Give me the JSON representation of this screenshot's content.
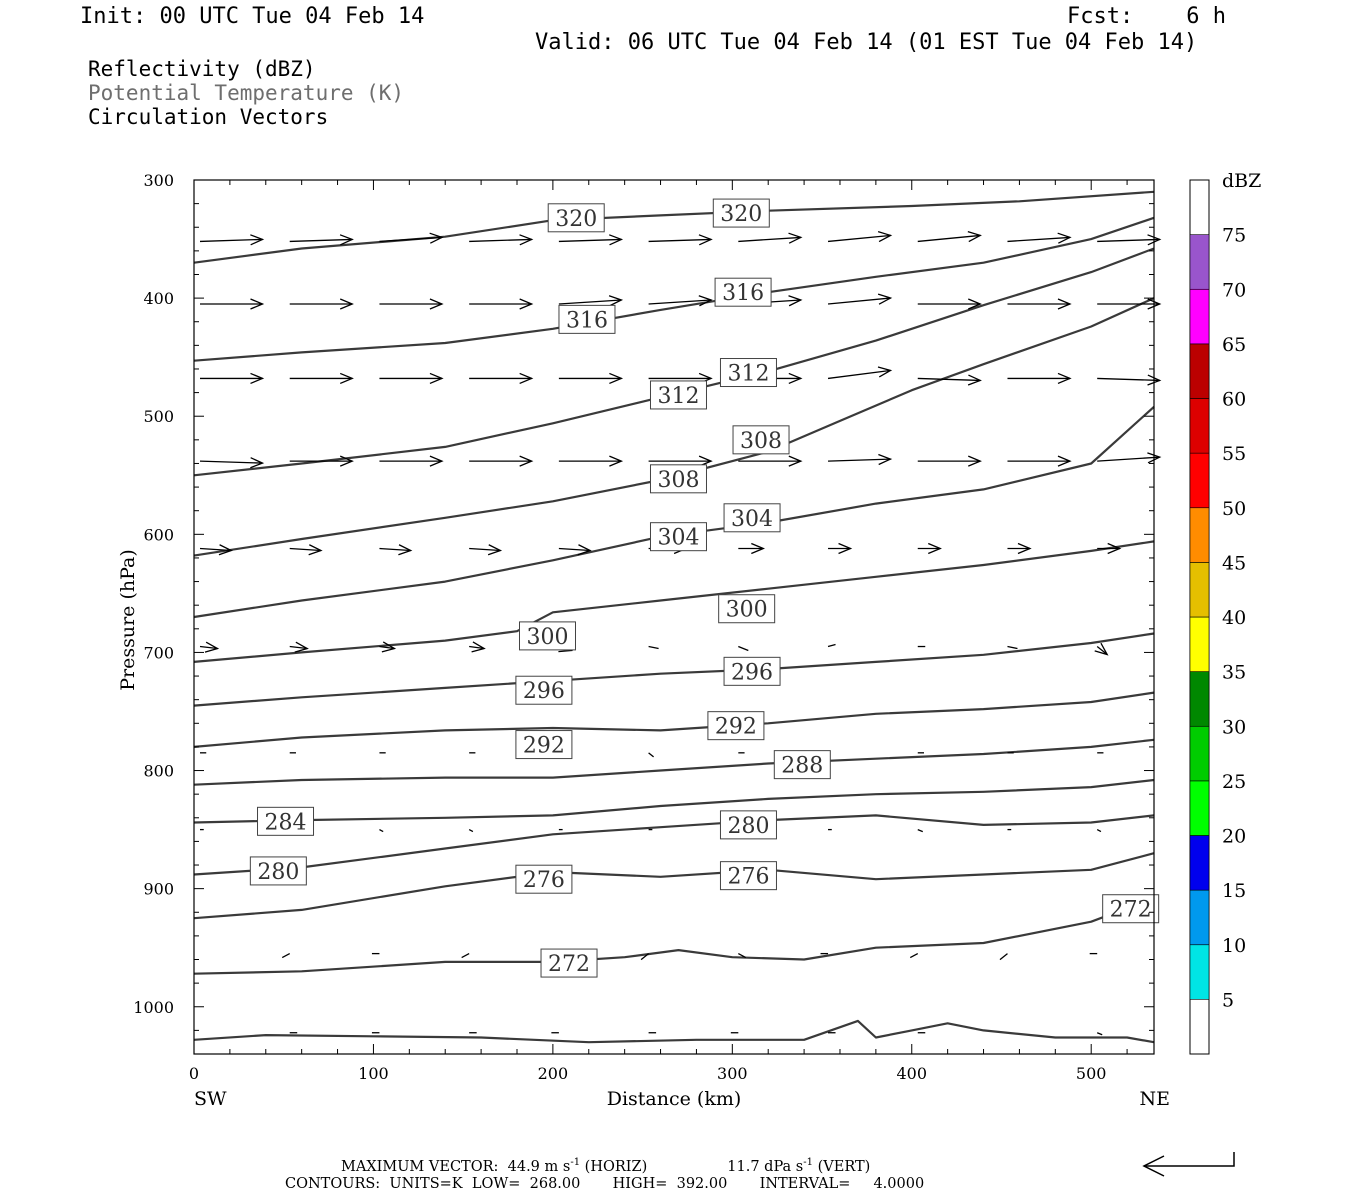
{
  "header": {
    "init": "Init: 00 UTC Tue 04 Feb 14",
    "fcst": "Fcst:    6 h",
    "valid": "Valid: 06 UTC Tue 04 Feb 14 (01 EST Tue 04 Feb 14)"
  },
  "legend": {
    "line1": "Reflectivity (dBZ)",
    "line2": "Potential Temperature (K)",
    "line3": "Circulation Vectors"
  },
  "footer": {
    "max_vector": "MAXIMUM VECTOR:  44.9 m s",
    "max_vector_exp": "-1",
    "horiz": " (HORIZ)",
    "vert_val": "11.7 dPa s",
    "vert_exp": "-1",
    "vert": " (VERT)",
    "contours": "CONTOURS:  UNITS=K  LOW=  268.00       HIGH=  392.00       INTERVAL=     4.0000"
  },
  "colorbar": {
    "unit": "dBZ",
    "labels": [
      "5",
      "10",
      "15",
      "20",
      "25",
      "30",
      "35",
      "40",
      "45",
      "50",
      "55",
      "60",
      "65",
      "70",
      "75"
    ],
    "colors": [
      "#00e5e5",
      "#0099ee",
      "#0000ee",
      "#00ff00",
      "#00cc00",
      "#008800",
      "#ffff00",
      "#e5bf00",
      "#ff8c00",
      "#ff0000",
      "#dd0000",
      "#bb0000",
      "#ff00ff",
      "#9955cc"
    ]
  },
  "chart_data": {
    "type": "line",
    "xlabel": "Distance (km)",
    "ylabel": "Pressure (hPa)",
    "xlim": [
      0,
      535
    ],
    "ylim": [
      1040,
      300
    ],
    "x_ticks": [
      "0",
      "100",
      "200",
      "300",
      "400",
      "500"
    ],
    "y_ticks": [
      "300",
      "400",
      "500",
      "600",
      "700",
      "800",
      "900",
      "1000"
    ],
    "left_end_label": "SW",
    "right_end_label": "NE",
    "isentropes": [
      {
        "label": "320",
        "x": [
          0,
          60,
          140,
          200,
          260,
          320,
          400,
          460,
          535
        ],
        "y": [
          370,
          358,
          348,
          334,
          330,
          326,
          322,
          318,
          310
        ]
      },
      {
        "label": "316",
        "x": [
          0,
          60,
          140,
          200,
          260,
          320,
          380,
          440,
          500,
          535
        ],
        "y": [
          453,
          446,
          438,
          426,
          410,
          395,
          382,
          370,
          350,
          332
        ]
      },
      {
        "label": "312",
        "x": [
          0,
          60,
          140,
          200,
          260,
          320,
          380,
          440,
          500,
          535
        ],
        "y": [
          550,
          540,
          526,
          506,
          484,
          462,
          436,
          406,
          378,
          358
        ]
      },
      {
        "label": "308",
        "x": [
          0,
          60,
          140,
          200,
          260,
          320,
          360,
          400,
          440,
          500,
          535
        ],
        "y": [
          618,
          604,
          586,
          572,
          554,
          530,
          504,
          478,
          456,
          424,
          400
        ]
      },
      {
        "label": "304",
        "x": [
          0,
          60,
          140,
          200,
          260,
          320,
          380,
          440,
          500,
          535
        ],
        "y": [
          670,
          656,
          640,
          622,
          602,
          590,
          574,
          562,
          540,
          492
        ]
      },
      {
        "label": "300",
        "x": [
          0,
          60,
          140,
          180,
          200,
          260,
          320,
          380,
          440,
          500,
          535
        ],
        "y": [
          708,
          700,
          690,
          682,
          666,
          656,
          646,
          636,
          626,
          614,
          606
        ]
      },
      {
        "label": "296",
        "x": [
          0,
          60,
          140,
          200,
          260,
          320,
          380,
          440,
          500,
          535
        ],
        "y": [
          745,
          738,
          730,
          724,
          718,
          714,
          708,
          702,
          692,
          684
        ]
      },
      {
        "label": "292",
        "x": [
          0,
          60,
          140,
          200,
          260,
          320,
          380,
          440,
          500,
          535
        ],
        "y": [
          780,
          772,
          766,
          764,
          766,
          760,
          752,
          748,
          742,
          734
        ]
      },
      {
        "label": "288",
        "x": [
          0,
          60,
          140,
          200,
          260,
          320,
          380,
          440,
          500,
          535
        ],
        "y": [
          812,
          808,
          806,
          806,
          800,
          794,
          790,
          786,
          780,
          774
        ]
      },
      {
        "label": "284",
        "x": [
          0,
          60,
          140,
          200,
          260,
          320,
          380,
          440,
          500,
          535
        ],
        "y": [
          844,
          842,
          840,
          838,
          830,
          824,
          820,
          818,
          814,
          808
        ]
      },
      {
        "label": "280",
        "x": [
          0,
          60,
          140,
          200,
          260,
          320,
          380,
          440,
          500,
          535
        ],
        "y": [
          888,
          882,
          866,
          854,
          848,
          842,
          838,
          846,
          844,
          838
        ]
      },
      {
        "label": "276",
        "x": [
          0,
          60,
          140,
          200,
          260,
          320,
          380,
          440,
          500,
          535
        ],
        "y": [
          925,
          918,
          898,
          886,
          890,
          884,
          892,
          888,
          884,
          870
        ]
      },
      {
        "label": "272",
        "x": [
          0,
          60,
          140,
          200,
          240,
          270,
          300,
          340,
          380,
          440,
          500,
          535
        ],
        "y": [
          972,
          970,
          962,
          962,
          958,
          952,
          958,
          960,
          950,
          946,
          928,
          908
        ]
      },
      {
        "label": "268",
        "x": [
          0,
          40,
          100,
          160,
          220,
          280,
          340,
          370,
          380,
          400,
          420,
          440,
          480,
          520,
          535
        ],
        "y": [
          1028,
          1024,
          1025,
          1026,
          1030,
          1028,
          1028,
          1012,
          1026,
          1020,
          1014,
          1020,
          1026,
          1026,
          1030
        ]
      }
    ],
    "contour_labels": [
      {
        "text": "320",
        "x": 213,
        "y": 332
      },
      {
        "text": "320",
        "x": 305,
        "y": 328
      },
      {
        "text": "316",
        "x": 219,
        "y": 418
      },
      {
        "text": "316",
        "x": 306,
        "y": 395
      },
      {
        "text": "312",
        "x": 270,
        "y": 482
      },
      {
        "text": "312",
        "x": 309,
        "y": 463
      },
      {
        "text": "308",
        "x": 270,
        "y": 553
      },
      {
        "text": "308",
        "x": 316,
        "y": 520
      },
      {
        "text": "304",
        "x": 270,
        "y": 602
      },
      {
        "text": "304",
        "x": 311,
        "y": 586
      },
      {
        "text": "300",
        "x": 197,
        "y": 686
      },
      {
        "text": "300",
        "x": 308,
        "y": 663
      },
      {
        "text": "296",
        "x": 195,
        "y": 732
      },
      {
        "text": "296",
        "x": 311,
        "y": 716
      },
      {
        "text": "292",
        "x": 195,
        "y": 778
      },
      {
        "text": "292",
        "x": 302,
        "y": 762
      },
      {
        "text": "288",
        "x": 339,
        "y": 795
      },
      {
        "text": "284",
        "x": 51,
        "y": 843
      },
      {
        "text": "280",
        "x": 309,
        "y": 846
      },
      {
        "text": "280",
        "x": 47,
        "y": 885
      },
      {
        "text": "276",
        "x": 195,
        "y": 892
      },
      {
        "text": "276",
        "x": 309,
        "y": 889
      },
      {
        "text": "272",
        "x": 522,
        "y": 917
      },
      {
        "text": "272",
        "x": 209,
        "y": 963
      }
    ],
    "vector_rows": [
      {
        "p": 352,
        "rows": [
          [
            0,
            50,
            -2
          ],
          [
            50,
            50,
            -2
          ],
          [
            100,
            50,
            -4
          ],
          [
            150,
            50,
            -2
          ],
          [
            200,
            50,
            -2
          ],
          [
            250,
            50,
            -2
          ],
          [
            300,
            50,
            -4
          ],
          [
            350,
            50,
            -6
          ],
          [
            400,
            50,
            -6
          ],
          [
            450,
            50,
            -4
          ],
          [
            500,
            50,
            -2
          ]
        ]
      },
      {
        "p": 405,
        "rows": [
          [
            0,
            50,
            0
          ],
          [
            50,
            50,
            0
          ],
          [
            100,
            50,
            0
          ],
          [
            150,
            50,
            0
          ],
          [
            200,
            50,
            -4
          ],
          [
            250,
            50,
            -4
          ],
          [
            300,
            50,
            -4
          ],
          [
            350,
            50,
            -6
          ],
          [
            400,
            50,
            0
          ],
          [
            450,
            50,
            0
          ],
          [
            500,
            50,
            0
          ]
        ]
      },
      {
        "p": 468,
        "rows": [
          [
            0,
            50,
            0
          ],
          [
            50,
            50,
            0
          ],
          [
            100,
            50,
            0
          ],
          [
            150,
            50,
            0
          ],
          [
            200,
            50,
            0
          ],
          [
            250,
            50,
            0
          ],
          [
            300,
            50,
            0
          ],
          [
            350,
            50,
            -8
          ],
          [
            400,
            50,
            2
          ],
          [
            450,
            50,
            0
          ],
          [
            500,
            50,
            2
          ]
        ]
      },
      {
        "p": 538,
        "rows": [
          [
            0,
            50,
            2
          ],
          [
            50,
            50,
            0
          ],
          [
            100,
            50,
            0
          ],
          [
            150,
            50,
            0
          ],
          [
            200,
            50,
            0
          ],
          [
            250,
            50,
            0
          ],
          [
            300,
            50,
            0
          ],
          [
            350,
            50,
            -2
          ],
          [
            400,
            50,
            0
          ],
          [
            450,
            50,
            0
          ],
          [
            500,
            50,
            -4
          ]
        ]
      },
      {
        "p": 612,
        "rows": [
          [
            0,
            25,
            2
          ],
          [
            50,
            25,
            2
          ],
          [
            100,
            25,
            2
          ],
          [
            150,
            25,
            2
          ],
          [
            200,
            25,
            2
          ],
          [
            250,
            30,
            0
          ],
          [
            300,
            20,
            0
          ],
          [
            350,
            18,
            0
          ],
          [
            400,
            18,
            0
          ],
          [
            450,
            18,
            0
          ],
          [
            500,
            18,
            0
          ]
        ]
      },
      {
        "p": 695,
        "rows": [
          [
            0,
            14,
            2
          ],
          [
            50,
            14,
            2
          ],
          [
            100,
            12,
            2
          ],
          [
            150,
            12,
            2
          ],
          [
            200,
            10,
            4
          ],
          [
            250,
            8,
            2
          ],
          [
            300,
            8,
            4
          ],
          [
            350,
            6,
            -2
          ],
          [
            400,
            6,
            0
          ],
          [
            450,
            8,
            2
          ],
          [
            500,
            8,
            8
          ]
        ]
      },
      {
        "p": 785,
        "rows": [
          [
            0,
            5,
            0
          ],
          [
            50,
            5,
            0
          ],
          [
            100,
            5,
            0
          ],
          [
            150,
            5,
            0
          ],
          [
            200,
            5,
            2
          ],
          [
            250,
            4,
            4
          ],
          [
            300,
            5,
            0
          ],
          [
            350,
            0,
            0
          ],
          [
            400,
            5,
            0
          ],
          [
            450,
            5,
            0
          ],
          [
            500,
            5,
            0
          ]
        ]
      },
      {
        "p": 850,
        "rows": [
          [
            0,
            3,
            0
          ],
          [
            50,
            3,
            0
          ],
          [
            100,
            3,
            2
          ],
          [
            150,
            3,
            2
          ],
          [
            200,
            3,
            0
          ],
          [
            250,
            3,
            0
          ],
          [
            300,
            3,
            0
          ],
          [
            350,
            3,
            0
          ],
          [
            400,
            4,
            2
          ],
          [
            450,
            3,
            0
          ],
          [
            500,
            3,
            2
          ]
        ]
      },
      {
        "p": 955,
        "rows": [
          [
            50,
            -6,
            4
          ],
          [
            100,
            -6,
            0
          ],
          [
            150,
            -6,
            4
          ],
          [
            200,
            -6,
            0
          ],
          [
            250,
            -6,
            6
          ],
          [
            300,
            6,
            4
          ],
          [
            350,
            -6,
            0
          ],
          [
            400,
            -6,
            4
          ],
          [
            450,
            -6,
            6
          ],
          [
            500,
            -6,
            0
          ]
        ]
      },
      {
        "p": 1022,
        "rows": [
          [
            50,
            6,
            0
          ],
          [
            100,
            -6,
            0
          ],
          [
            150,
            6,
            0
          ],
          [
            200,
            -6,
            0
          ],
          [
            250,
            6,
            0
          ],
          [
            300,
            -6,
            0
          ],
          [
            350,
            6,
            0
          ],
          [
            400,
            6,
            0
          ],
          [
            500,
            4,
            2
          ]
        ]
      }
    ]
  }
}
